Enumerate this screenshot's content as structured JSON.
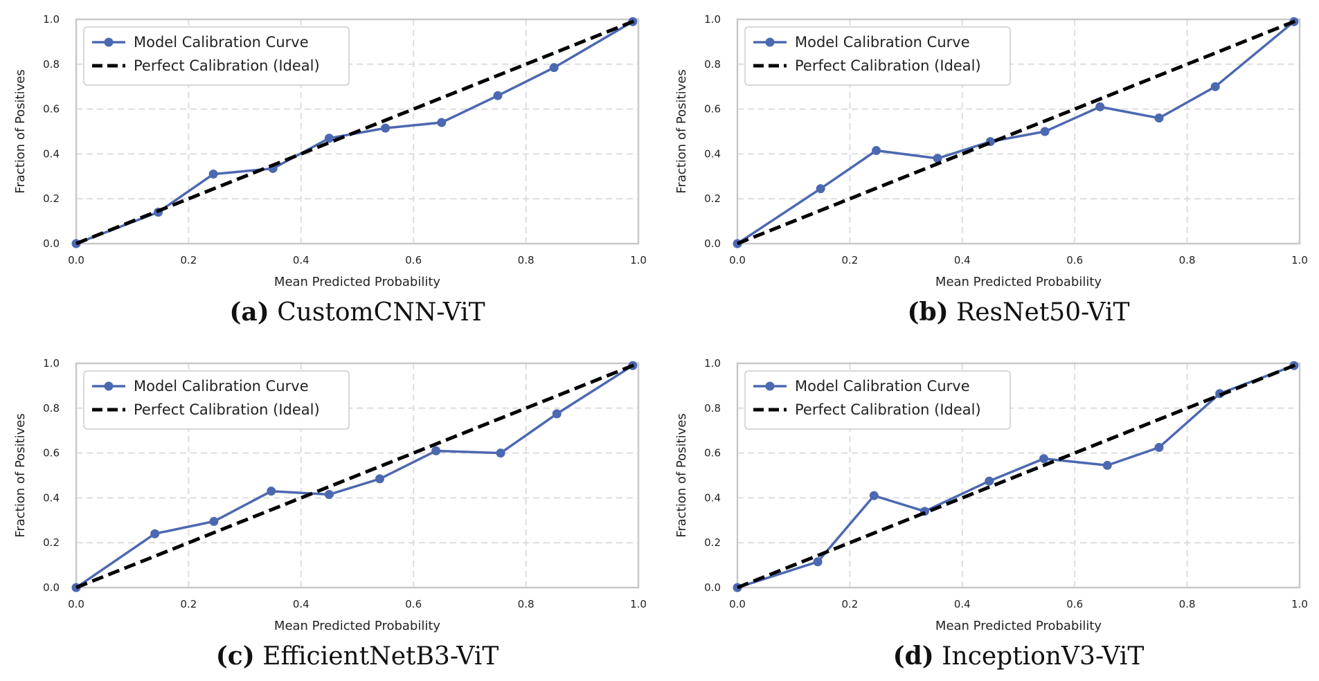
{
  "chart_data": [
    {
      "type": "line",
      "caption_label": "(a)",
      "caption_title": "CustomCNN-ViT",
      "xlabel": "Mean Predicted Probability",
      "ylabel": "Fraction of Positives",
      "xlim": [
        0,
        1
      ],
      "ylim": [
        0,
        1
      ],
      "xticks": [
        "0.0",
        "0.2",
        "0.4",
        "0.6",
        "0.8",
        "1.0"
      ],
      "yticks": [
        "0.0",
        "0.2",
        "0.4",
        "0.6",
        "0.8",
        "1.0"
      ],
      "grid": true,
      "legend_position": "upper-left",
      "series": [
        {
          "name": "Model Calibration Curve",
          "style": "solid-marker",
          "color": "#4c68b0",
          "x": [
            0.0,
            0.146,
            0.244,
            0.35,
            0.45,
            0.55,
            0.65,
            0.75,
            0.85,
            0.99
          ],
          "y": [
            0.0,
            0.14,
            0.31,
            0.335,
            0.47,
            0.515,
            0.54,
            0.66,
            0.785,
            0.99
          ]
        },
        {
          "name": "Perfect Calibration (Ideal)",
          "style": "dashed",
          "color": "#000000",
          "x": [
            0,
            1
          ],
          "y": [
            0,
            1
          ]
        }
      ]
    },
    {
      "type": "line",
      "caption_label": "(b)",
      "caption_title": "ResNet50-ViT",
      "xlabel": "Mean Predicted Probability",
      "ylabel": "Fraction of Positives",
      "xlim": [
        0,
        1
      ],
      "ylim": [
        0,
        1
      ],
      "xticks": [
        "0.0",
        "0.2",
        "0.4",
        "0.6",
        "0.8",
        "1.0"
      ],
      "yticks": [
        "0.0",
        "0.2",
        "0.4",
        "0.6",
        "0.8",
        "1.0"
      ],
      "grid": true,
      "legend_position": "upper-left",
      "series": [
        {
          "name": "Model Calibration Curve",
          "style": "solid-marker",
          "color": "#4c68b0",
          "x": [
            0.0,
            0.148,
            0.247,
            0.356,
            0.45,
            0.547,
            0.645,
            0.75,
            0.85,
            0.99
          ],
          "y": [
            0.0,
            0.245,
            0.415,
            0.38,
            0.455,
            0.5,
            0.61,
            0.56,
            0.7,
            0.99
          ]
        },
        {
          "name": "Perfect Calibration (Ideal)",
          "style": "dashed",
          "color": "#000000",
          "x": [
            0,
            1
          ],
          "y": [
            0,
            1
          ]
        }
      ]
    },
    {
      "type": "line",
      "caption_label": "(c)",
      "caption_title": "EfficientNetB3-ViT",
      "xlabel": "Mean Predicted Probability",
      "ylabel": "Fraction of Positives",
      "xlim": [
        0,
        1
      ],
      "ylim": [
        0,
        1
      ],
      "xticks": [
        "0.0",
        "0.2",
        "0.4",
        "0.6",
        "0.8",
        "1.0"
      ],
      "yticks": [
        "0.0",
        "0.2",
        "0.4",
        "0.6",
        "0.8",
        "1.0"
      ],
      "grid": true,
      "legend_position": "upper-left",
      "series": [
        {
          "name": "Model Calibration Curve",
          "style": "solid-marker",
          "color": "#4c68b0",
          "x": [
            0.0,
            0.14,
            0.245,
            0.347,
            0.45,
            0.54,
            0.64,
            0.755,
            0.855,
            0.99
          ],
          "y": [
            0.0,
            0.24,
            0.295,
            0.43,
            0.415,
            0.485,
            0.61,
            0.6,
            0.775,
            0.99
          ]
        },
        {
          "name": "Perfect Calibration (Ideal)",
          "style": "dashed",
          "color": "#000000",
          "x": [
            0,
            1
          ],
          "y": [
            0,
            1
          ]
        }
      ]
    },
    {
      "type": "line",
      "caption_label": "(d)",
      "caption_title": "InceptionV3-ViT",
      "xlabel": "Mean Predicted Probability",
      "ylabel": "Fraction of Positives",
      "xlim": [
        0,
        1
      ],
      "ylim": [
        0,
        1
      ],
      "xticks": [
        "0.0",
        "0.2",
        "0.4",
        "0.6",
        "0.8",
        "1.0"
      ],
      "yticks": [
        "0.0",
        "0.2",
        "0.4",
        "0.6",
        "0.8",
        "1.0"
      ],
      "grid": true,
      "legend_position": "upper-left",
      "series": [
        {
          "name": "Model Calibration Curve",
          "style": "solid-marker",
          "color": "#4c68b0",
          "x": [
            0.0,
            0.143,
            0.243,
            0.333,
            0.448,
            0.545,
            0.658,
            0.75,
            0.858,
            0.99
          ],
          "y": [
            0.0,
            0.115,
            0.41,
            0.34,
            0.475,
            0.575,
            0.545,
            0.625,
            0.865,
            0.99
          ]
        },
        {
          "name": "Perfect Calibration (Ideal)",
          "style": "dashed",
          "color": "#000000",
          "x": [
            0,
            1
          ],
          "y": [
            0,
            1
          ]
        }
      ]
    }
  ]
}
